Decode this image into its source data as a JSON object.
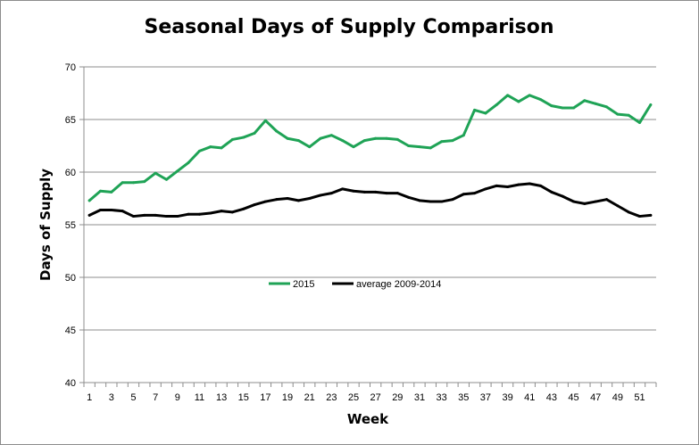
{
  "chart_data": {
    "type": "line",
    "title": "Seasonal Days of Supply Comparison",
    "xlabel": "Week",
    "ylabel": "Days of Supply",
    "xlim": [
      1,
      52
    ],
    "ylim": [
      40,
      70
    ],
    "y_ticks": [
      40,
      45,
      50,
      55,
      60,
      65,
      70
    ],
    "x_ticks": [
      1,
      3,
      5,
      7,
      9,
      11,
      13,
      15,
      17,
      19,
      21,
      23,
      25,
      27,
      29,
      31,
      33,
      35,
      37,
      39,
      41,
      43,
      45,
      47,
      49,
      51
    ],
    "grid": "horizontal",
    "legend_position": "center",
    "x": [
      1,
      2,
      3,
      4,
      5,
      6,
      7,
      8,
      9,
      10,
      11,
      12,
      13,
      14,
      15,
      16,
      17,
      18,
      19,
      20,
      21,
      22,
      23,
      24,
      25,
      26,
      27,
      28,
      29,
      30,
      31,
      32,
      33,
      34,
      35,
      36,
      37,
      38,
      39,
      40,
      41,
      42,
      43,
      44,
      45,
      46,
      47,
      48,
      49,
      50,
      51,
      52
    ],
    "series": [
      {
        "name": "2015",
        "color": "#1fa356",
        "values": [
          57.3,
          58.2,
          58.1,
          59.0,
          59.0,
          59.1,
          59.9,
          59.3,
          60.1,
          60.9,
          62.0,
          62.4,
          62.3,
          63.1,
          63.3,
          63.7,
          64.9,
          63.9,
          63.2,
          63.0,
          62.4,
          63.2,
          63.5,
          63.0,
          62.4,
          63.0,
          63.2,
          63.2,
          63.1,
          62.5,
          62.4,
          62.3,
          62.9,
          63.0,
          63.5,
          65.9,
          65.6,
          66.4,
          67.3,
          66.7,
          67.3,
          66.9,
          66.3,
          66.1,
          66.1,
          66.8,
          66.5,
          66.2,
          65.5,
          65.4,
          64.7,
          66.4
        ]
      },
      {
        "name": "average 2009-2014",
        "color": "#000000",
        "values": [
          55.9,
          56.4,
          56.4,
          56.3,
          55.8,
          55.9,
          55.9,
          55.8,
          55.8,
          56.0,
          56.0,
          56.1,
          56.3,
          56.2,
          56.5,
          56.9,
          57.2,
          57.4,
          57.5,
          57.3,
          57.5,
          57.8,
          58.0,
          58.4,
          58.2,
          58.1,
          58.1,
          58.0,
          58.0,
          57.6,
          57.3,
          57.2,
          57.2,
          57.4,
          57.9,
          58.0,
          58.4,
          58.7,
          58.6,
          58.8,
          58.9,
          58.7,
          58.1,
          57.7,
          57.2,
          57.0,
          57.2,
          57.4,
          56.8,
          56.2,
          55.8,
          55.9
        ]
      }
    ]
  }
}
